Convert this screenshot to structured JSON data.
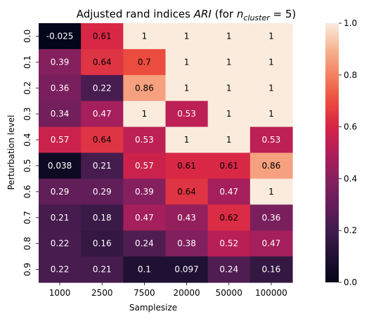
{
  "chart_data": {
    "type": "heatmap",
    "title_prefix": "Adjusted rand indices ",
    "title_ari": "ARI",
    "title_mid": " (for ",
    "title_n": "n",
    "title_sub": "cluster",
    "title_suffix": " = 5)",
    "xlabel": "Samplesize",
    "ylabel": "Perturbation level",
    "x_categories": [
      "1000",
      "2500",
      "7500",
      "20000",
      "50000",
      "100000"
    ],
    "y_categories": [
      "0.0",
      "0.1",
      "0.2",
      "0.3",
      "0.4",
      "0.5",
      "0.6",
      "0.7",
      "0.8",
      "0.9"
    ],
    "values": [
      [
        -0.025,
        0.61,
        1,
        1,
        1,
        1
      ],
      [
        0.39,
        0.64,
        0.7,
        1,
        1,
        1
      ],
      [
        0.36,
        0.22,
        0.86,
        1,
        1,
        1
      ],
      [
        0.34,
        0.47,
        1,
        0.53,
        1,
        1
      ],
      [
        0.57,
        0.64,
        0.53,
        1,
        1,
        0.53
      ],
      [
        0.038,
        0.21,
        0.57,
        0.61,
        0.61,
        0.86
      ],
      [
        0.29,
        0.29,
        0.39,
        0.64,
        0.47,
        1
      ],
      [
        0.21,
        0.18,
        0.47,
        0.43,
        0.62,
        0.36
      ],
      [
        0.22,
        0.16,
        0.24,
        0.38,
        0.52,
        0.47
      ],
      [
        0.22,
        0.21,
        0.1,
        0.097,
        0.24,
        0.16
      ]
    ],
    "labels": [
      [
        "-0.025",
        "0.61",
        "1",
        "1",
        "1",
        "1"
      ],
      [
        "0.39",
        "0.64",
        "0.7",
        "1",
        "1",
        "1"
      ],
      [
        "0.36",
        "0.22",
        "0.86",
        "1",
        "1",
        "1"
      ],
      [
        "0.34",
        "0.47",
        "1",
        "0.53",
        "1",
        "1"
      ],
      [
        "0.57",
        "0.64",
        "0.53",
        "1",
        "1",
        "0.53"
      ],
      [
        "0.038",
        "0.21",
        "0.57",
        "0.61",
        "0.61",
        "0.86"
      ],
      [
        "0.29",
        "0.29",
        "0.39",
        "0.64",
        "0.47",
        "1"
      ],
      [
        "0.21",
        "0.18",
        "0.47",
        "0.43",
        "0.62",
        "0.36"
      ],
      [
        "0.22",
        "0.16",
        "0.24",
        "0.38",
        "0.52",
        "0.47"
      ],
      [
        "0.22",
        "0.21",
        "0.1",
        "0.097",
        "0.24",
        "0.16"
      ]
    ],
    "colorbar": {
      "min": 0.0,
      "max": 1.0,
      "ticks": [
        "0.0",
        "0.2",
        "0.4",
        "0.6",
        "0.8",
        "1.0"
      ],
      "colormap": "rocket"
    }
  }
}
